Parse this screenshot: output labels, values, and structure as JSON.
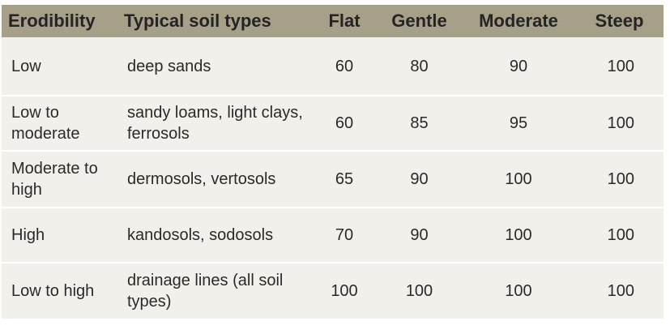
{
  "table": {
    "headers": [
      "Erodibility",
      "Typical soil types",
      "Flat",
      "Gentle",
      "Moderate",
      "Steep"
    ],
    "rows": [
      [
        "Low",
        "deep sands",
        "60",
        "80",
        "90",
        "100"
      ],
      [
        "Low to moderate",
        "sandy loams, light clays, ferrosols",
        "60",
        "85",
        "95",
        "100"
      ],
      [
        "Moderate to high",
        "dermosols, vertosols",
        "65",
        "90",
        "100",
        "100"
      ],
      [
        "High",
        "kandosols, sodosols",
        "70",
        "90",
        "100",
        "100"
      ],
      [
        "Low to high",
        "drainage lines (all soil types)",
        "100",
        "100",
        "100",
        "100"
      ]
    ]
  },
  "colors": {
    "header_bg": "#a6a089",
    "row_bg": "#f1f0eb",
    "separator": "#ffffff"
  }
}
